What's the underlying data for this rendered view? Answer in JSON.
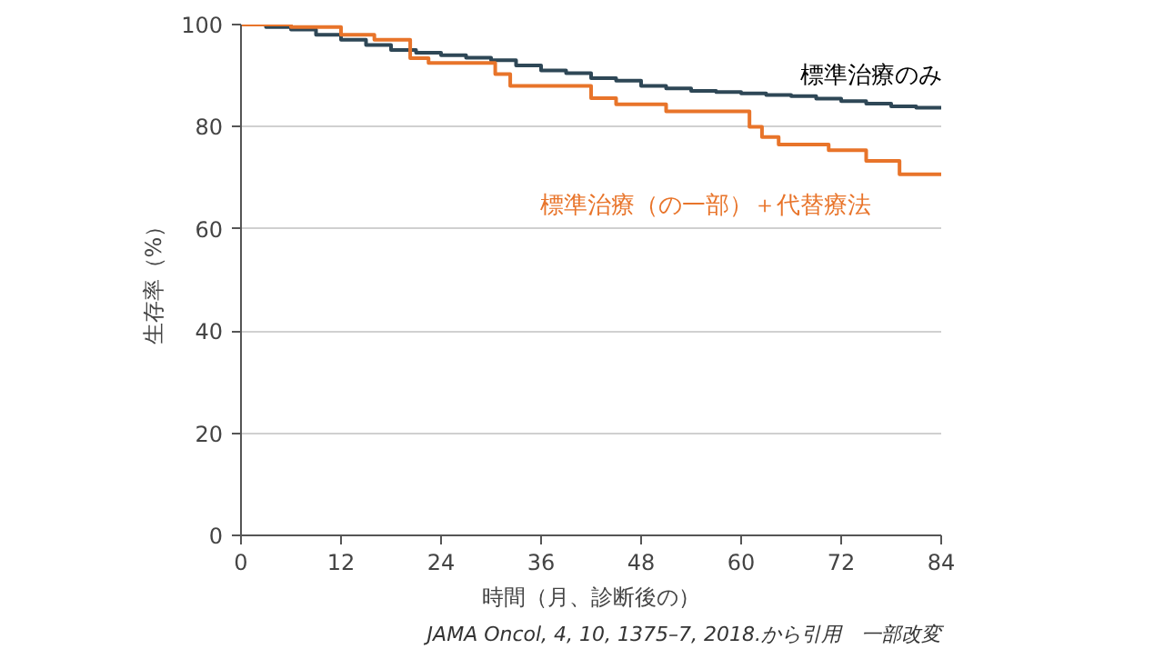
{
  "chart_data": {
    "type": "step",
    "xlabel": "時間（月、診断後の）",
    "ylabel": "生存率（%）",
    "annotations": [
      "JAMA Oncol, 4, 10, 1375–7, 2018.から引用　一部改変"
    ],
    "xlim": [
      0,
      84
    ],
    "ylim": [
      0,
      100
    ],
    "xticks": [
      0,
      12,
      24,
      36,
      48,
      60,
      72,
      84
    ],
    "yticks": [
      0,
      20,
      40,
      60,
      80,
      100
    ],
    "grid": "y",
    "marker": "none",
    "line_style": "solid",
    "series": [
      {
        "name": "標準治療のみ",
        "color": "#2e4756",
        "x": [
          0,
          3,
          6,
          9,
          12,
          15,
          18,
          21,
          24,
          27,
          30,
          33,
          36,
          39,
          42,
          45,
          48,
          51,
          54,
          57,
          60,
          63,
          66,
          69,
          72,
          75,
          78,
          81,
          84
        ],
        "values": [
          100,
          99.5,
          99,
          98,
          97,
          96,
          95,
          94.5,
          94,
          93.5,
          93,
          92,
          91,
          90.5,
          89.5,
          89,
          88,
          87.5,
          87,
          86.8,
          86.5,
          86.2,
          86,
          85.5,
          85,
          84.5,
          84,
          83.7,
          83.5
        ]
      },
      {
        "name": "標準治療（の一部）＋代替療法",
        "color": "#e8742a",
        "x": [
          0,
          6,
          12,
          16,
          20.3,
          22.5,
          30.5,
          32.3,
          42,
          45,
          51,
          61,
          62.5,
          64.5,
          70.5,
          75,
          79,
          84
        ],
        "values": [
          100,
          99.5,
          98,
          97,
          93.4,
          92.5,
          90.3,
          88,
          85.6,
          84.4,
          83,
          80,
          78,
          76.5,
          75.4,
          73.3,
          70.7,
          70.7
        ]
      }
    ]
  }
}
